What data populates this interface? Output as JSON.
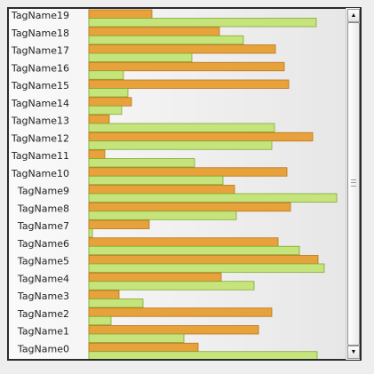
{
  "chart_data": {
    "type": "bar",
    "orientation": "horizontal",
    "categories": [
      "TagName19",
      "TagName18",
      "TagName17",
      "TagName16",
      "TagName15",
      "TagName14",
      "TagName13",
      "TagName12",
      "TagName11",
      "TagName10",
      "TagName9",
      "TagName8",
      "TagName7",
      "TagName6",
      "TagName5",
      "TagName4",
      "TagName3",
      "TagName2",
      "TagName1",
      "TagName0"
    ],
    "series": [
      {
        "color": "#e8a23c",
        "stroke": "#b8741a",
        "values": [
          71,
          147,
          210,
          220,
          225,
          48,
          23,
          252,
          18,
          223,
          164,
          227,
          68,
          213,
          258,
          149,
          34,
          206,
          191,
          123
        ]
      },
      {
        "color": "#c6e47c",
        "stroke": "#7fa830",
        "values": [
          256,
          174,
          116,
          39,
          44,
          37,
          209,
          206,
          119,
          151,
          279,
          166,
          4,
          237,
          265,
          186,
          61,
          25,
          107,
          257
        ]
      }
    ],
    "grid": false,
    "legend": "none"
  },
  "scrollbar": {
    "up_arrow": "▲",
    "down_arrow": "▼"
  }
}
